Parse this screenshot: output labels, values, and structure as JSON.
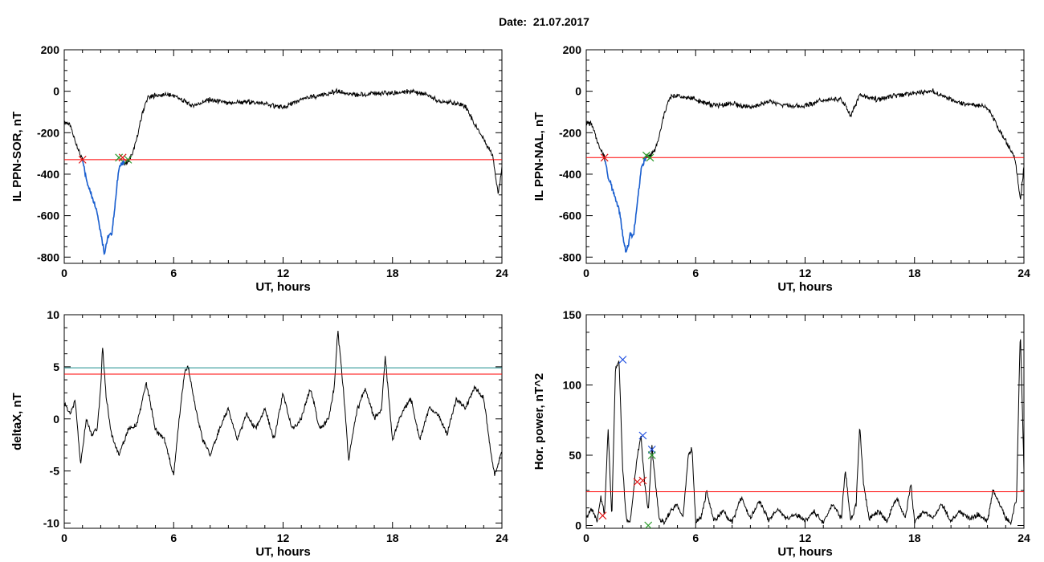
{
  "page": {
    "title": "Date:  21.07.2017"
  },
  "colors": {
    "data_line": "#000000",
    "threshold_red": "#ff0000",
    "threshold_teal": "#1f8f8f",
    "highlight_blue": "#1a5fd0",
    "marker_red": "#e01010",
    "marker_green": "#2a9a2a",
    "marker_blue": "#2050e0"
  },
  "chart_data": [
    {
      "id": "il-ppn-sor",
      "type": "line",
      "xlabel": "UT, hours",
      "ylabel": "IL PPN-SOR, nT",
      "xlim": [
        0,
        24
      ],
      "ylim": [
        -830,
        200
      ],
      "xticks": [
        0,
        6,
        12,
        18,
        24
      ],
      "yticks": [
        -800,
        -600,
        -400,
        -200,
        0,
        200
      ],
      "series": [
        {
          "values_x": [
            0,
            0.3,
            0.6,
            0.9,
            1.0,
            1.2,
            1.5,
            1.8,
            2.0,
            2.2,
            2.4,
            2.6,
            2.8,
            3.0,
            3.2,
            3.5,
            3.8,
            4.0,
            4.3,
            4.6,
            5.0,
            6.0,
            7.0,
            8.0,
            9.0,
            10.0,
            11.0,
            12.0,
            13.0,
            14.0,
            14.5,
            15.0,
            16.0,
            17.0,
            18.0,
            19.0,
            20.0,
            20.5,
            21.0,
            22.0,
            22.5,
            23.0,
            23.5,
            23.8,
            24.0
          ],
          "values_y": [
            -150,
            -160,
            -240,
            -310,
            -330,
            -420,
            -500,
            -580,
            -680,
            -780,
            -700,
            -690,
            -540,
            -360,
            -350,
            -340,
            -290,
            -220,
            -100,
            -30,
            -20,
            -20,
            -70,
            -40,
            -60,
            -50,
            -60,
            -80,
            -40,
            -20,
            -10,
            0,
            -20,
            -10,
            -10,
            0,
            -20,
            -50,
            -50,
            -70,
            -160,
            -230,
            -310,
            -500,
            -360
          ]
        }
      ],
      "highlight": {
        "x_from": 1.0,
        "x_to": 3.3
      },
      "threshold": {
        "value": -330
      },
      "markers": [
        {
          "x": 1.0,
          "y": -330,
          "color": "marker_red"
        },
        {
          "x": 3.0,
          "y": -320,
          "color": "marker_green"
        },
        {
          "x": 3.2,
          "y": -320,
          "color": "marker_red"
        },
        {
          "x": 3.5,
          "y": -330,
          "color": "marker_green"
        }
      ]
    },
    {
      "id": "il-ppn-nal",
      "type": "line",
      "xlabel": "UT, hours",
      "ylabel": "IL PPN-NAL, nT",
      "xlim": [
        0,
        24
      ],
      "ylim": [
        -830,
        200
      ],
      "xticks": [
        0,
        6,
        12,
        18,
        24
      ],
      "yticks": [
        -800,
        -600,
        -400,
        -200,
        0,
        200
      ],
      "series": [
        {
          "values_x": [
            0,
            0.3,
            0.6,
            0.9,
            1.0,
            1.2,
            1.5,
            1.8,
            2.0,
            2.2,
            2.4,
            2.6,
            2.8,
            3.0,
            3.2,
            3.5,
            3.8,
            4.0,
            4.3,
            4.6,
            5.0,
            6.0,
            7.0,
            8.0,
            9.0,
            10.0,
            11.0,
            12.0,
            13.0,
            14.0,
            14.5,
            15.0,
            16.0,
            17.0,
            18.0,
            19.0,
            20.0,
            20.5,
            21.0,
            22.0,
            22.5,
            23.0,
            23.5,
            23.8,
            24.0
          ],
          "values_y": [
            -150,
            -160,
            -240,
            -300,
            -320,
            -410,
            -490,
            -570,
            -690,
            -780,
            -700,
            -690,
            -540,
            -380,
            -330,
            -310,
            -280,
            -220,
            -100,
            -30,
            -20,
            -40,
            -70,
            -60,
            -80,
            -50,
            -70,
            -70,
            -40,
            -40,
            -120,
            -20,
            -40,
            -20,
            -10,
            0,
            -40,
            -60,
            -60,
            -80,
            -160,
            -240,
            -320,
            -520,
            -370
          ]
        }
      ],
      "highlight": {
        "x_from": 1.0,
        "x_to": 3.3
      },
      "threshold": {
        "value": -320
      },
      "markers": [
        {
          "x": 1.0,
          "y": -320,
          "color": "marker_red"
        },
        {
          "x": 3.3,
          "y": -310,
          "color": "marker_green"
        },
        {
          "x": 3.5,
          "y": -320,
          "color": "marker_green"
        }
      ]
    },
    {
      "id": "delta-x",
      "type": "line",
      "xlabel": "UT, hours",
      "ylabel": "deltaX, nT",
      "xlim": [
        0,
        24
      ],
      "ylim": [
        -10.5,
        10
      ],
      "xticks": [
        0,
        6,
        12,
        18,
        24
      ],
      "yticks": [
        -10,
        -5,
        0,
        5,
        10
      ],
      "series": [
        {
          "values_x": [
            0,
            0.3,
            0.6,
            0.9,
            1.2,
            1.5,
            1.8,
            2.0,
            2.1,
            2.3,
            2.6,
            3.0,
            3.5,
            4.0,
            4.5,
            5.0,
            5.5,
            6.0,
            6.3,
            6.6,
            6.8,
            7.2,
            7.6,
            8.0,
            8.5,
            9.0,
            9.5,
            10.0,
            10.5,
            11.0,
            11.5,
            12.0,
            12.5,
            13.0,
            13.5,
            14.0,
            14.5,
            14.8,
            15.0,
            15.3,
            15.6,
            16.0,
            16.5,
            17.0,
            17.4,
            17.6,
            18.0,
            18.5,
            19.0,
            19.5,
            20.0,
            20.5,
            21.0,
            21.5,
            22.0,
            22.5,
            23.0,
            23.3,
            23.6,
            24.0
          ],
          "values_y": [
            1.5,
            0.5,
            1.8,
            -4.5,
            0,
            -1.5,
            -1,
            3,
            7,
            2,
            -1.5,
            -3.5,
            -1,
            -0.5,
            3.5,
            -1,
            -2,
            -5.5,
            0,
            4.5,
            5,
            1,
            -2,
            -3.5,
            -1,
            1,
            -2,
            0.5,
            -1,
            1,
            -2,
            2.5,
            -1,
            0,
            3,
            -1,
            0,
            3,
            8.5,
            3,
            -4,
            0.5,
            3,
            0,
            1,
            6,
            -2,
            0.5,
            2,
            -2,
            1,
            0.5,
            -1.5,
            2,
            1,
            3,
            2,
            -2,
            -5.5,
            -3
          ]
        }
      ],
      "thresholds": [
        {
          "value": 4.9,
          "color": "threshold_teal"
        },
        {
          "value": 4.3,
          "color": "threshold_red"
        }
      ]
    },
    {
      "id": "hor-power",
      "type": "line",
      "xlabel": "UT, hours",
      "ylabel": "Hor. power, nT^2",
      "xlim": [
        0,
        24
      ],
      "ylim": [
        -2,
        150
      ],
      "xticks": [
        0,
        6,
        12,
        18,
        24
      ],
      "yticks": [
        0,
        50,
        100,
        150
      ],
      "series": [
        {
          "values_x": [
            0,
            0.3,
            0.6,
            0.8,
            1.0,
            1.2,
            1.4,
            1.6,
            1.8,
            2.0,
            2.2,
            2.4,
            2.6,
            2.8,
            3.0,
            3.2,
            3.4,
            3.6,
            3.8,
            4.0,
            4.3,
            4.6,
            5.0,
            5.3,
            5.6,
            5.8,
            6.0,
            6.3,
            6.6,
            7.0,
            7.5,
            8.0,
            8.5,
            9.0,
            9.5,
            10.0,
            10.5,
            11.0,
            11.5,
            12.0,
            12.5,
            13.0,
            13.5,
            14.0,
            14.2,
            14.5,
            14.8,
            15.0,
            15.2,
            15.5,
            16.0,
            16.5,
            17.0,
            17.5,
            17.8,
            18.0,
            18.5,
            19.0,
            19.5,
            20.0,
            20.5,
            21.0,
            21.5,
            22.0,
            22.3,
            22.6,
            23.0,
            23.3,
            23.6,
            23.8,
            24.0
          ],
          "values_y": [
            5,
            12,
            3,
            20,
            8,
            68,
            5,
            110,
            118,
            40,
            5,
            2,
            25,
            50,
            64,
            30,
            10,
            56,
            30,
            5,
            2,
            10,
            15,
            5,
            50,
            55,
            3,
            5,
            25,
            3,
            10,
            2,
            20,
            5,
            18,
            3,
            12,
            5,
            8,
            3,
            10,
            2,
            15,
            5,
            40,
            3,
            15,
            72,
            30,
            5,
            10,
            3,
            20,
            5,
            30,
            3,
            10,
            5,
            15,
            3,
            10,
            5,
            8,
            3,
            25,
            18,
            5,
            2,
            20,
            140,
            40
          ]
        }
      ],
      "threshold": {
        "value": 24
      },
      "markers": [
        {
          "x": 0.9,
          "y": 7,
          "color": "marker_red"
        },
        {
          "x": 2.0,
          "y": 118,
          "color": "marker_blue"
        },
        {
          "x": 2.8,
          "y": 31,
          "color": "marker_red"
        },
        {
          "x": 3.1,
          "y": 32,
          "color": "marker_red"
        },
        {
          "x": 3.1,
          "y": 64,
          "color": "marker_blue"
        },
        {
          "x": 3.6,
          "y": 54,
          "color": "marker_blue"
        },
        {
          "x": 3.6,
          "y": 50,
          "color": "marker_green"
        },
        {
          "x": 3.4,
          "y": 0,
          "color": "marker_green"
        }
      ]
    }
  ]
}
